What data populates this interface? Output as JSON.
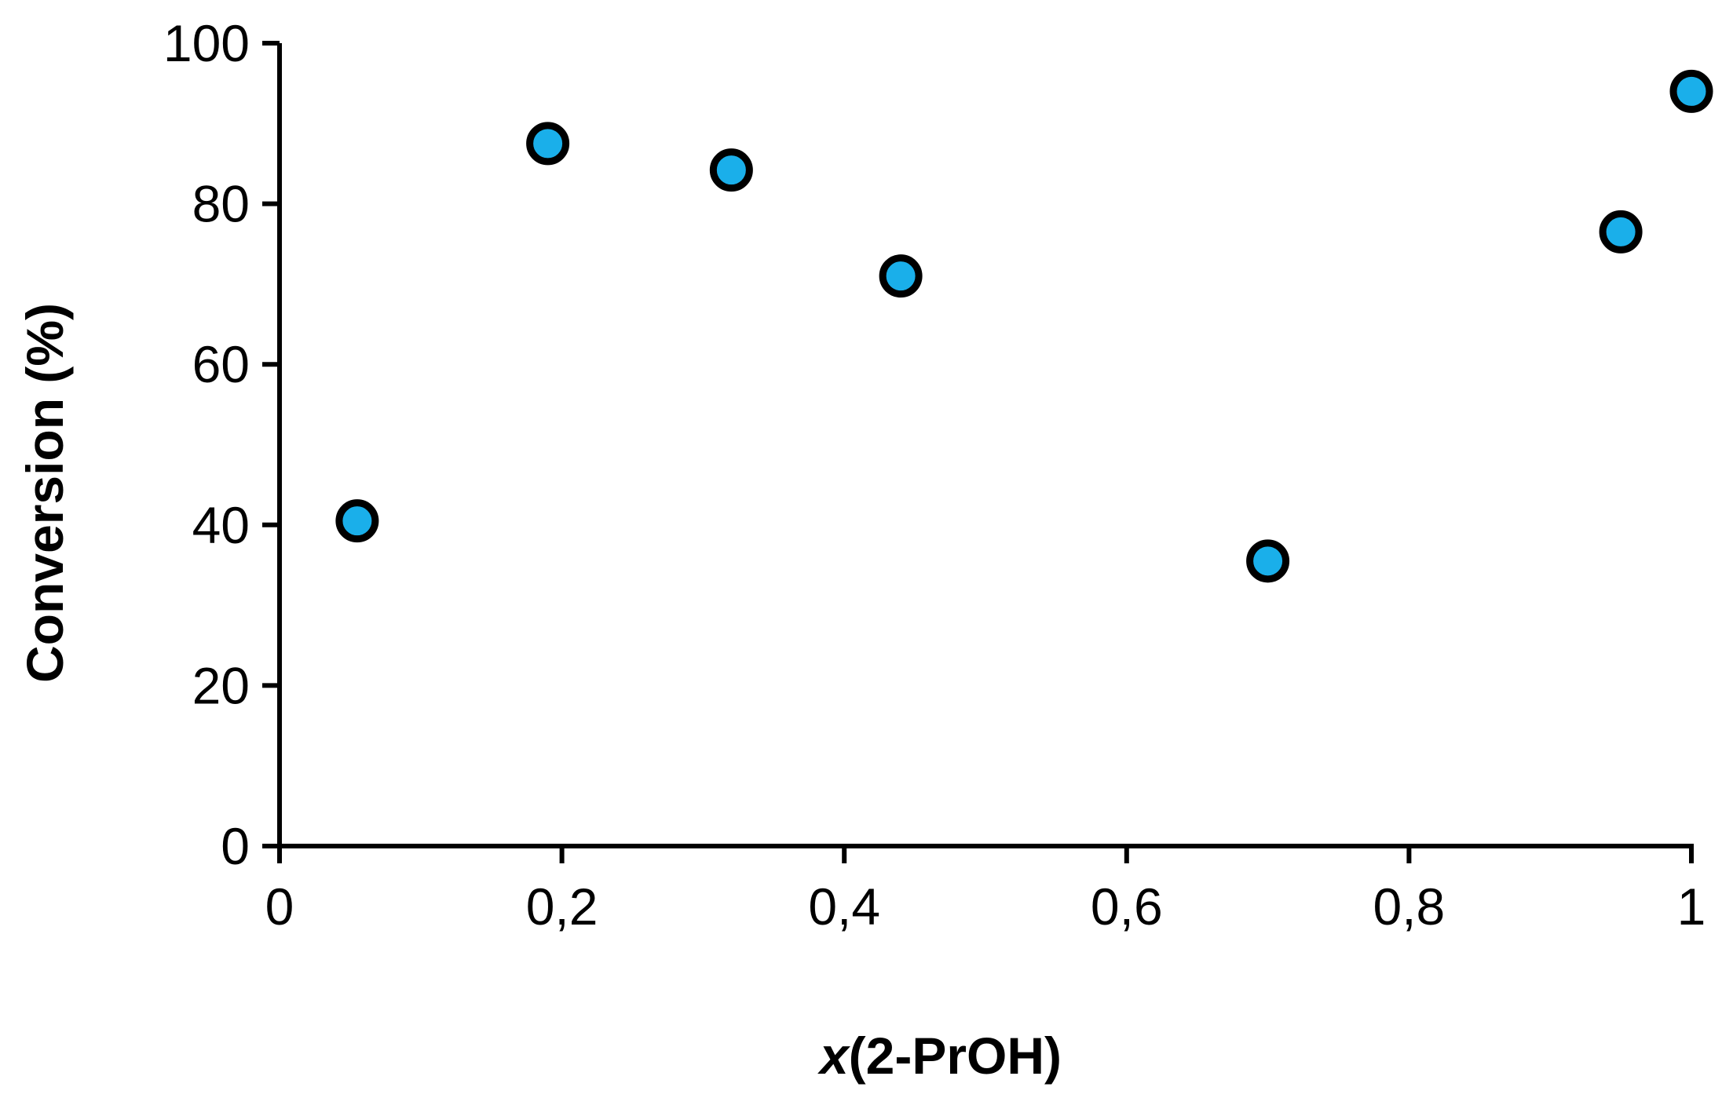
{
  "chart_data": {
    "type": "scatter",
    "xlabel_italic": "x",
    "xlabel_rest": "(2-PrOH)",
    "ylabel": "Conversion (%)",
    "xlim": [
      0,
      1
    ],
    "ylim": [
      0,
      100
    ],
    "x_ticks": [
      0,
      0.2,
      0.4,
      0.6,
      0.8,
      1
    ],
    "x_tick_labels": [
      "0",
      "0,2",
      "0,4",
      "0,6",
      "0,8",
      "1"
    ],
    "y_ticks": [
      0,
      20,
      40,
      60,
      80,
      100
    ],
    "y_tick_labels": [
      "0",
      "20",
      "40",
      "60",
      "80",
      "100"
    ],
    "grid": false,
    "marker_color": "#1AAFEA",
    "marker_edge_color": "#000000",
    "series": [
      {
        "x": [
          0.055,
          0.19,
          0.32,
          0.44,
          0.7,
          0.95,
          1.0
        ],
        "y": [
          40.5,
          87.5,
          84.2,
          71.0,
          35.5,
          76.5,
          94.0
        ]
      }
    ]
  }
}
